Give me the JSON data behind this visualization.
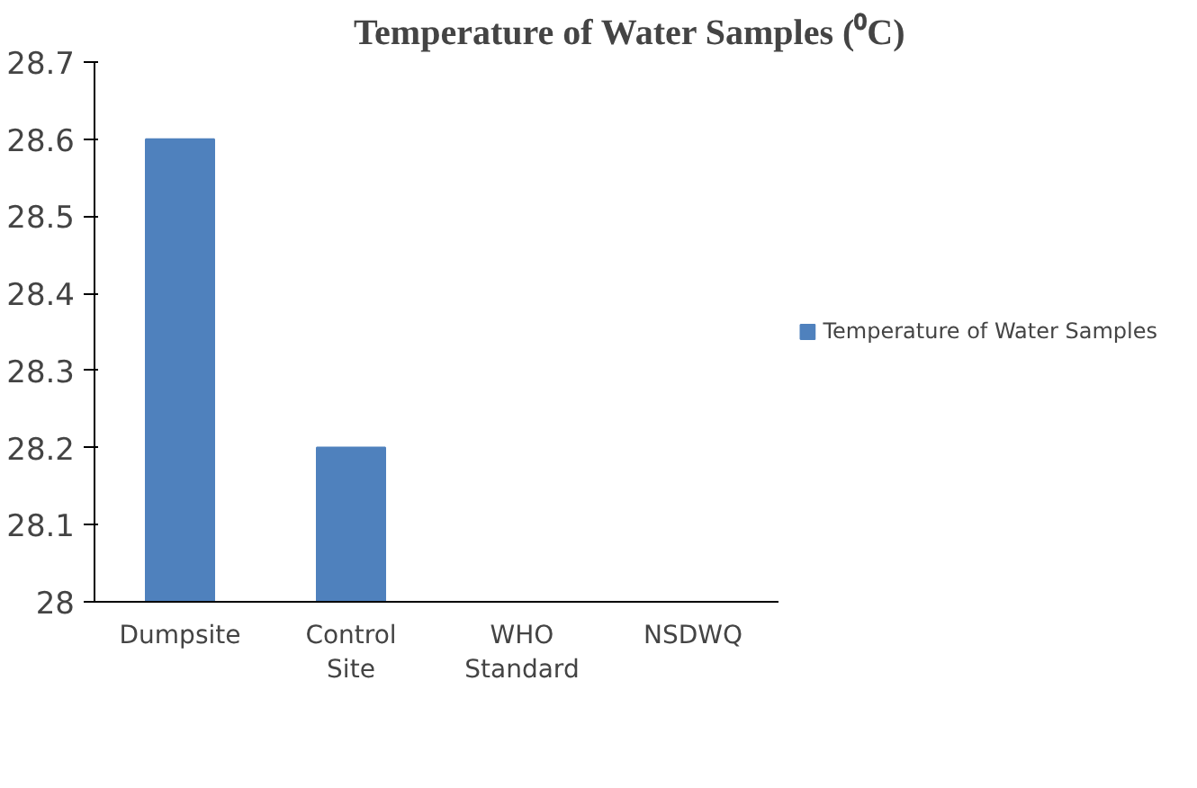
{
  "chart_data": {
    "type": "bar",
    "title": "Temperature of Water Samples (⁰C)",
    "categories": [
      "Dumpsite",
      "Control Site",
      "WHO Standard",
      "NSDWQ"
    ],
    "series": [
      {
        "name": "Temperature of Water Samples",
        "color": "#4f81bd",
        "values": [
          28.6,
          28.2,
          null,
          null
        ]
      }
    ],
    "ylim": [
      28,
      28.7
    ],
    "yticks": [
      28,
      28.1,
      28.2,
      28.3,
      28.4,
      28.5,
      28.6,
      28.7
    ],
    "grid": false,
    "legend": "right"
  }
}
